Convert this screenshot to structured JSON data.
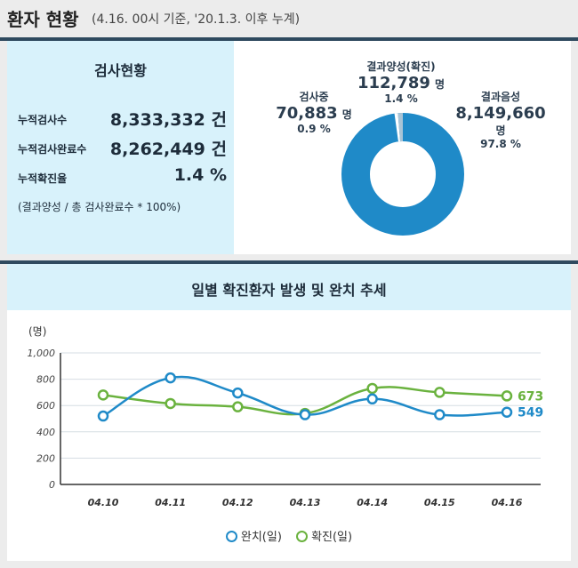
{
  "header": {
    "title": "환자 현황",
    "subtitle": "(4.16. 00시 기준, '20.1.3. 이후 누계)"
  },
  "stats": {
    "title": "검사현황",
    "rows": [
      {
        "label": "누적검사수",
        "value": "8,333,332 건"
      },
      {
        "label": "누적검사완료수",
        "value": "8,262,449 건"
      },
      {
        "label": "누적확진율",
        "value": "1.4 %"
      }
    ],
    "note": "(결과양성 / 총 검사완료수 * 100%)"
  },
  "donut": {
    "testing": {
      "name": "검사중",
      "count": "70,883",
      "unit": "명",
      "pct": "0.9 %"
    },
    "positive": {
      "name": "결과양성(확진)",
      "count": "112,789",
      "unit": "명",
      "pct": "1.4 %"
    },
    "negative": {
      "name": "결과음성",
      "count": "8,149,660",
      "unit": "명",
      "pct": "97.8 %"
    },
    "colors": {
      "negative": "#1f8ac8",
      "positive": "#a9c4d6",
      "testing": "#ffffff"
    },
    "fractions": {
      "negative": 0.977,
      "positive": 0.014,
      "testing": 0.009
    }
  },
  "chart_title": "일별 확진환자 발생 및 완치 추세",
  "chart_data": {
    "type": "line",
    "categories": [
      "04.10",
      "04.11",
      "04.12",
      "04.13",
      "04.14",
      "04.15",
      "04.16"
    ],
    "ylabel": "(명)",
    "ylim": [
      0,
      1000
    ],
    "yticks": [
      "0",
      "200",
      "400",
      "600",
      "800",
      "1,000"
    ],
    "grid": true,
    "series": [
      {
        "name": "완치(일)",
        "color": "#1f8ac8",
        "values": [
          520,
          810,
          695,
          530,
          650,
          530,
          549
        ],
        "end_label": "549"
      },
      {
        "name": "확진(일)",
        "color": "#6ab23e",
        "values": [
          680,
          615,
          590,
          540,
          730,
          700,
          673
        ],
        "end_label": "673"
      }
    ]
  }
}
